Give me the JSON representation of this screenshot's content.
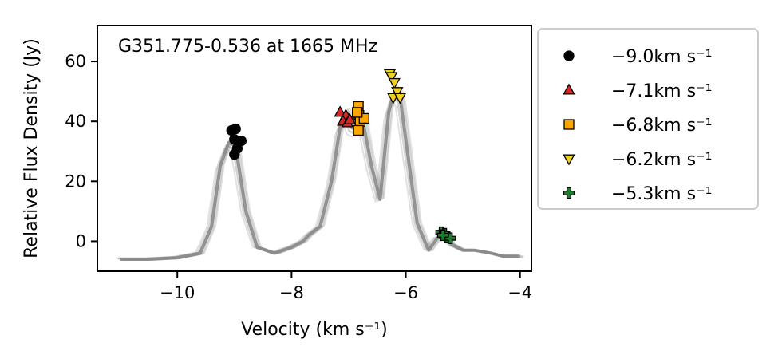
{
  "chart_data": {
    "type": "line",
    "annotation": "G351.775-0.536 at 1665 MHz",
    "xlabel": "Velocity (km s⁻¹)",
    "ylabel": "Relative Flux Density (Jy)",
    "xlim": [
      -11.4,
      -3.8
    ],
    "ylim": [
      -10,
      72
    ],
    "xticks": [
      -10,
      -8,
      -6,
      -4
    ],
    "xtick_labels": [
      "−10",
      "−8",
      "−6",
      "−4"
    ],
    "yticks": [
      0,
      20,
      40,
      60
    ],
    "ytick_labels": [
      "0",
      "20",
      "40",
      "60"
    ],
    "grid": false,
    "legend_position": "outside-right",
    "spectrum": {
      "color": "#888888",
      "x": [
        -11.0,
        -10.5,
        -10.0,
        -9.6,
        -9.4,
        -9.25,
        -9.1,
        -9.0,
        -8.95,
        -8.8,
        -8.6,
        -8.3,
        -8.0,
        -7.8,
        -7.7,
        -7.5,
        -7.3,
        -7.15,
        -7.05,
        -6.95,
        -6.85,
        -6.75,
        -6.6,
        -6.45,
        -6.3,
        -6.2,
        -6.1,
        -6.0,
        -5.8,
        -5.6,
        -5.45,
        -5.3,
        -5.2,
        -5.0,
        -4.8,
        -4.5,
        -4.3,
        -4.0
      ],
      "y": [
        -6,
        -6,
        -5.5,
        -4,
        5,
        25,
        33,
        32,
        28,
        10,
        -2,
        -4,
        -2,
        0,
        2,
        5,
        20,
        38,
        43,
        38,
        37,
        40,
        25,
        14,
        43,
        50,
        48,
        34,
        6,
        -3,
        1,
        2,
        -1,
        -3,
        -3,
        -4,
        -5,
        -5
      ]
    },
    "series": [
      {
        "name": "−9.0km s⁻¹",
        "marker": "circle",
        "color": "#000000",
        "points": [
          [
            -9.05,
            37
          ],
          [
            -8.98,
            37.5
          ],
          [
            -9.0,
            34
          ],
          [
            -8.95,
            31
          ],
          [
            -9.0,
            29
          ],
          [
            -8.88,
            33.5
          ]
        ]
      },
      {
        "name": "−7.1km s⁻¹",
        "marker": "triangle-up",
        "color": "#d62728",
        "points": [
          [
            -7.15,
            43
          ],
          [
            -7.05,
            42
          ],
          [
            -7.1,
            40
          ],
          [
            -7.02,
            39.5
          ],
          [
            -6.98,
            40.5
          ]
        ]
      },
      {
        "name": "−6.8km s⁻¹",
        "marker": "square",
        "color": "#ffa500",
        "points": [
          [
            -6.83,
            45
          ],
          [
            -6.82,
            42
          ],
          [
            -6.8,
            40
          ],
          [
            -6.83,
            37
          ],
          [
            -6.73,
            41
          ],
          [
            -6.85,
            43
          ]
        ]
      },
      {
        "name": "−6.2km s⁻¹",
        "marker": "triangle-down",
        "color": "#f0d020",
        "points": [
          [
            -6.28,
            56
          ],
          [
            -6.25,
            55
          ],
          [
            -6.2,
            53
          ],
          [
            -6.15,
            50
          ],
          [
            -6.22,
            48
          ],
          [
            -6.1,
            48
          ]
        ]
      },
      {
        "name": "−5.3km s⁻¹",
        "marker": "plus",
        "color": "#1a7f2a",
        "points": [
          [
            -5.38,
            3
          ],
          [
            -5.32,
            2.5
          ],
          [
            -5.28,
            1.5
          ],
          [
            -5.22,
            1
          ],
          [
            -5.35,
            2
          ]
        ]
      }
    ]
  }
}
